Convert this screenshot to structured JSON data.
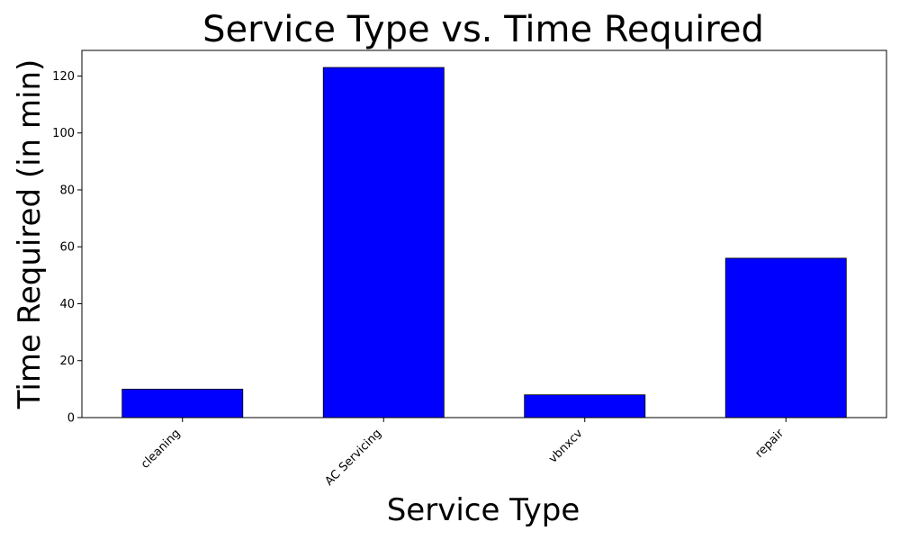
{
  "chart_data": {
    "type": "bar",
    "title": "Service Type vs. Time Required",
    "xlabel": "Service Type",
    "ylabel": "Time Required (in min)",
    "categories": [
      "cleaning",
      "AC Servicing",
      "vbnxcv",
      "repair"
    ],
    "values": [
      10,
      123,
      8,
      56
    ],
    "ylim": [
      0,
      129
    ],
    "yticks": [
      0,
      20,
      40,
      60,
      80,
      100,
      120
    ],
    "bar_color": "#0000ff",
    "grid": false,
    "legend": "none"
  }
}
